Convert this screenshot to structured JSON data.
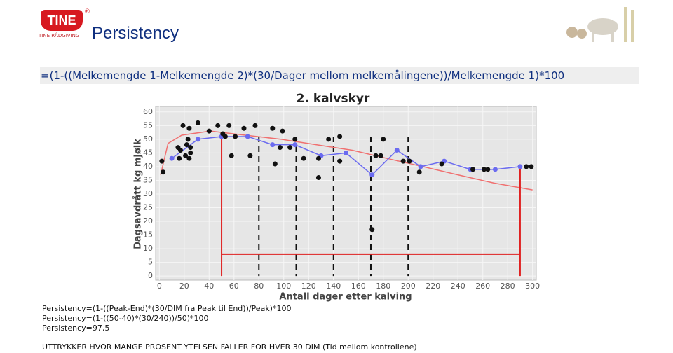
{
  "logo": {
    "name": "TINE",
    "mark": "®",
    "sub": "TINE RÅDGIVING"
  },
  "header": {
    "title": "Persistency"
  },
  "formula": "=(1-((Melkemengde 1-Melkemengde 2)*(30/Dager mellom melkemålingene))/Melkemengde 1)*100",
  "notes": [
    "Persistency=(1-((Peak-End)*(30/DIM fra Peak til End))/Peak)*100",
    "Persistency=(1-((50-40)*(30/240))/50)*100",
    "Persistency=97,5"
  ],
  "footer": "UTTRYKKER HVOR MANGE PROSENT YTELSEN FALLER FOR HVER 30 DIM (Tid mellom kontrollene)",
  "chart_data": {
    "type": "scatter",
    "title": "2. kalvskyr",
    "x_label": "Antall dager etter kalving",
    "y_label": "Dagsavdrått kg mjølk",
    "xlim": [
      -3,
      303
    ],
    "ylim": [
      -1.5,
      62
    ],
    "xticks": [
      0,
      20,
      40,
      60,
      80,
      100,
      120,
      140,
      160,
      180,
      200,
      220,
      240,
      260,
      280,
      300
    ],
    "yticks": [
      0,
      5,
      10,
      15,
      20,
      25,
      30,
      35,
      40,
      45,
      50,
      55,
      60
    ],
    "grid": true,
    "points": {
      "color": "#111111",
      "x": [
        3,
        2,
        15,
        17,
        19,
        24,
        31,
        23,
        22,
        25,
        16,
        21,
        25,
        24,
        40,
        47,
        51,
        53,
        56,
        58,
        61,
        68,
        77,
        73,
        91,
        99,
        93,
        97,
        105,
        109,
        116,
        128,
        136,
        145,
        128,
        145,
        171,
        174,
        178,
        180,
        196,
        201,
        209,
        227,
        252,
        261,
        264,
        295,
        299
      ],
      "y": [
        38,
        42,
        47,
        46,
        55,
        54,
        56,
        50,
        48,
        47,
        43,
        44,
        45,
        43,
        53,
        55,
        52,
        51,
        55,
        44,
        51,
        54,
        55,
        44,
        54,
        53,
        41,
        47,
        47,
        50,
        43,
        43,
        50,
        51,
        36,
        42,
        17,
        44,
        44,
        50,
        42,
        42,
        38,
        41,
        39,
        39,
        39,
        40,
        40
      ]
    },
    "profile": {
      "color": "#6b6bf0",
      "x": [
        10,
        31,
        50,
        71,
        91,
        109,
        130,
        150,
        171,
        191,
        210,
        229,
        250,
        270,
        290
      ],
      "y": [
        43,
        50,
        51,
        51,
        48,
        48,
        44,
        45,
        37,
        46,
        40,
        42,
        39,
        39,
        40
      ]
    },
    "curve": {
      "color": "#f07070",
      "x": [
        1,
        7,
        18,
        41,
        69,
        98,
        126,
        155,
        183,
        212,
        240,
        269,
        300
      ],
      "y": [
        37,
        48.5,
        51.5,
        53,
        51.5,
        50,
        48,
        46,
        43,
        40,
        37,
        34,
        31.5
      ]
    },
    "reference_x": [
      80,
      110,
      140,
      170,
      200
    ],
    "red_lines": {
      "color": "#e02020",
      "x": [
        50,
        50,
        290,
        290
      ],
      "y": [
        51,
        8,
        8,
        40
      ]
    }
  }
}
